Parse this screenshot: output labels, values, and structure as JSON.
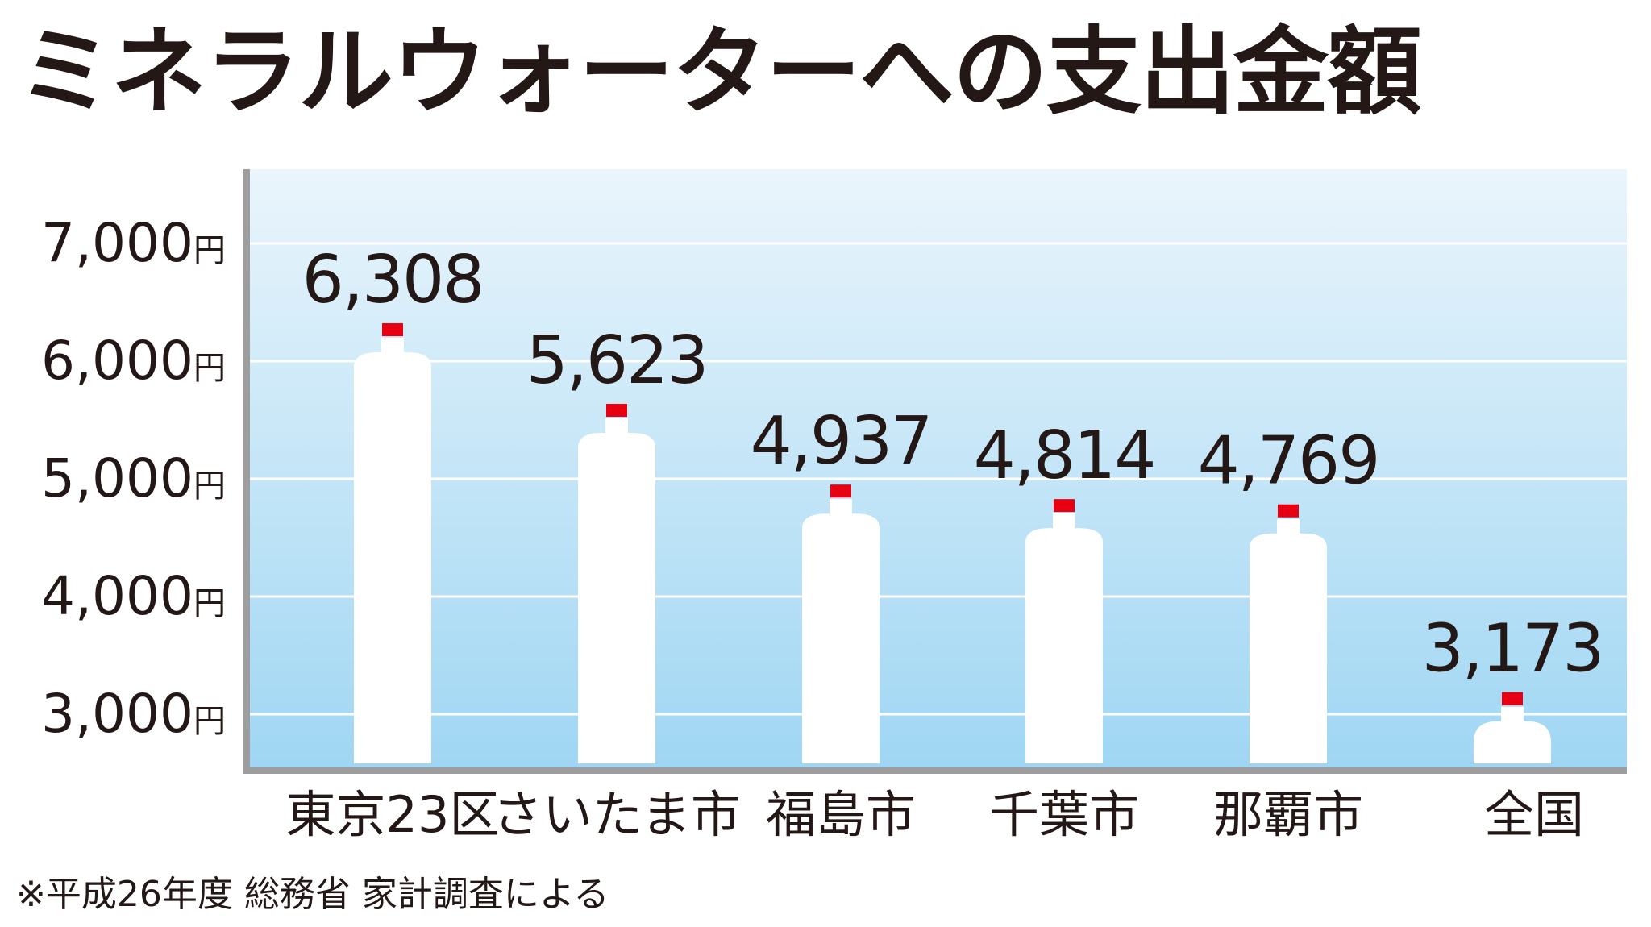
{
  "chart_data": {
    "type": "bar",
    "title": "ミネラルウォーターへの支出金額",
    "categories": [
      "東京23区",
      "さいたま市",
      "福島市",
      "千葉市",
      "那覇市",
      "全国"
    ],
    "values": [
      6308,
      5623,
      4937,
      4814,
      4769,
      3173
    ],
    "value_labels": [
      "6,308",
      "5,623",
      "4,937",
      "4,814",
      "4,769",
      "3,173"
    ],
    "yticks": [
      3000,
      4000,
      5000,
      6000,
      7000
    ],
    "ytick_labels": [
      "3,000円",
      "4,000円",
      "5,000円",
      "6,000円",
      "7,000円"
    ],
    "ylim": [
      2500,
      7600
    ],
    "grid": true,
    "note": "※平成26年度 総務省 家計調査による",
    "colors": {
      "background_top": "#eaf5fc",
      "background_bottom": "#9fd6f3",
      "bottle": "#ffffff",
      "cap": "#e60012",
      "axis": "#9d9d9d",
      "text": "#231815"
    }
  }
}
